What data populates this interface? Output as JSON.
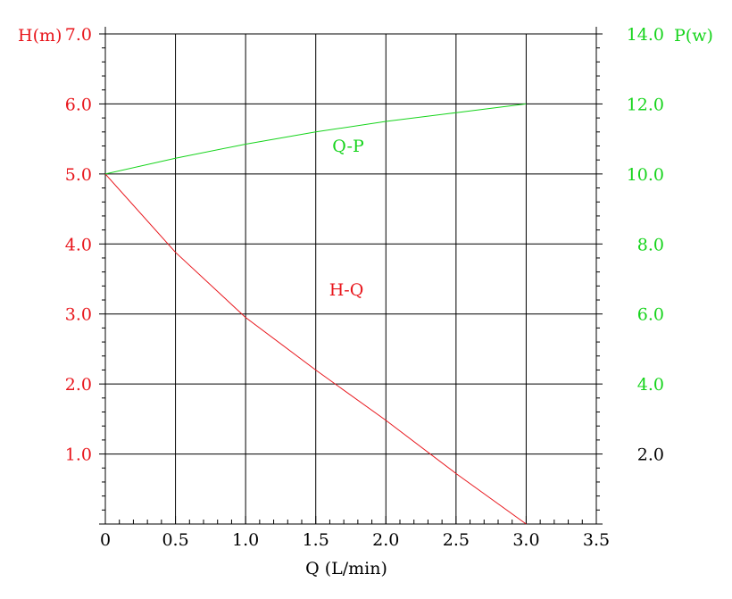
{
  "chart_data": {
    "type": "line",
    "xlabel": "Q (L/min)",
    "ylabel_left": "H(m)",
    "ylabel_right": "P(w)",
    "xlim": [
      0,
      3.5
    ],
    "ylim_left": [
      0,
      7.0
    ],
    "ylim_right": [
      0,
      14.0
    ],
    "grid": true,
    "x_ticks": [
      {
        "v": 0,
        "label": "0"
      },
      {
        "v": 0.5,
        "label": "0.5"
      },
      {
        "v": 1.0,
        "label": "1.0"
      },
      {
        "v": 1.5,
        "label": "1.5"
      },
      {
        "v": 2.0,
        "label": "2.0"
      },
      {
        "v": 2.5,
        "label": "2.5"
      },
      {
        "v": 3.0,
        "label": "3.0"
      },
      {
        "v": 3.5,
        "label": "3.5"
      }
    ],
    "y_left_ticks": [
      {
        "v": 1.0,
        "label": "1.0"
      },
      {
        "v": 2.0,
        "label": "2.0"
      },
      {
        "v": 3.0,
        "label": "3.0"
      },
      {
        "v": 4.0,
        "label": "4.0"
      },
      {
        "v": 5.0,
        "label": "5.0"
      },
      {
        "v": 6.0,
        "label": "6.0"
      },
      {
        "v": 7.0,
        "label": "7.0"
      }
    ],
    "y_right_ticks": [
      {
        "v": 2.0,
        "label": "2.0"
      },
      {
        "v": 4.0,
        "label": "4.0"
      },
      {
        "v": 6.0,
        "label": "6.0"
      },
      {
        "v": 8.0,
        "label": "8.0"
      },
      {
        "v": 10.0,
        "label": "10.0"
      },
      {
        "v": 12.0,
        "label": "12.0"
      },
      {
        "v": 14.0,
        "label": "14.0"
      }
    ],
    "series": [
      {
        "name": "H-Q",
        "axis": "left",
        "color": "#e8161c",
        "x": [
          0,
          0.5,
          1.0,
          1.5,
          2.0,
          2.5,
          3.0
        ],
        "y": [
          5.0,
          3.88,
          2.95,
          2.2,
          1.48,
          0.72,
          0.0
        ]
      },
      {
        "name": "Q-P",
        "axis": "right",
        "color": "#16d41c",
        "x": [
          0,
          0.5,
          1.0,
          1.5,
          2.0,
          2.5,
          3.0
        ],
        "y": [
          10.0,
          10.45,
          10.85,
          11.2,
          11.5,
          11.75,
          12.0
        ]
      }
    ],
    "colors": {
      "left_axis": "#e8161c",
      "right_axis": "#16d41c",
      "x_axis": "#000000",
      "grid": "#000000"
    }
  }
}
